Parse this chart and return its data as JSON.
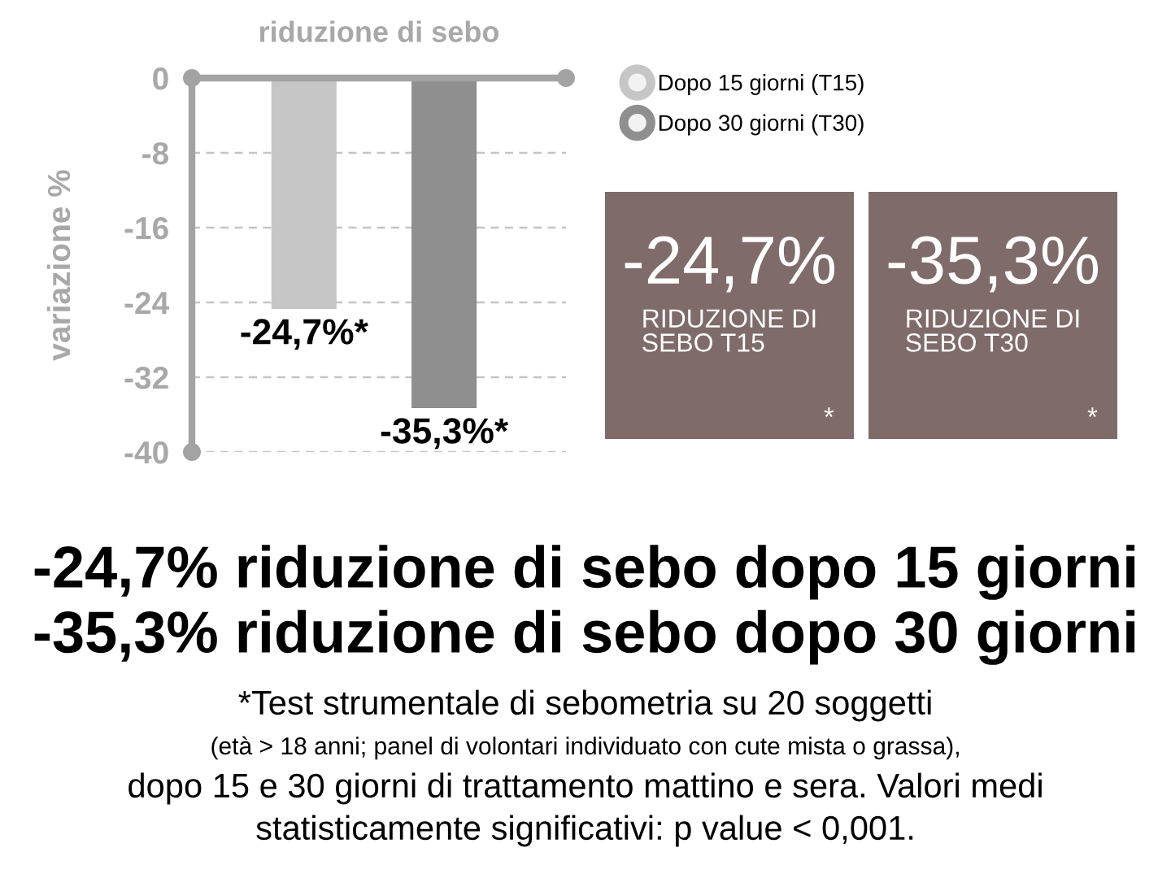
{
  "chart_data": [
    {
      "type": "bar",
      "title": "riduzione di sebo",
      "ylabel": "variazione %",
      "categories": [
        null,
        null
      ],
      "series": [
        {
          "name": "Dopo 15 giorni (T15)",
          "color": "#c6c6c6",
          "values": [
            -24.7,
            null
          ],
          "value_labels": [
            "-24,7%*",
            null
          ]
        },
        {
          "name": "Dopo 30 giorni (T30)",
          "color": "#8f8f8f",
          "values": [
            null,
            -35.3
          ],
          "value_labels": [
            null,
            "-35,3%*"
          ]
        }
      ],
      "ylim": [
        -40,
        0
      ],
      "yticks": [
        0,
        -8,
        -16,
        -24,
        -32,
        -40
      ],
      "grid": "y",
      "legend": "top right",
      "tick_labels": "y",
      "annotations": [
        "-24,7% riduzione di sebo dopo 15 giorni",
        "-35,3% riduzione di sebo dopo 30 giorni",
        "*Test strumentale di sebometria su 20 soggetti",
        "(età > 18 anni; panel di volontari individuato con cute mista o grassa),",
        "dopo 15 e 30 giorni di trattamento mattino e sera. Valori medi",
        "statisticamente significativi: p value < 0,001."
      ]
    },
    {
      "type": "other",
      "title": "-24,7%",
      "subtitle": "RIDUZIONE DI\nSEBO T15",
      "annotations": [
        "*"
      ],
      "color": "#7f6b6a"
    },
    {
      "type": "other",
      "title": "-35,3%",
      "subtitle": "RIDUZIONE DI\nSEBO T30",
      "annotations": [
        "*"
      ],
      "color": "#7f6b6a"
    }
  ]
}
